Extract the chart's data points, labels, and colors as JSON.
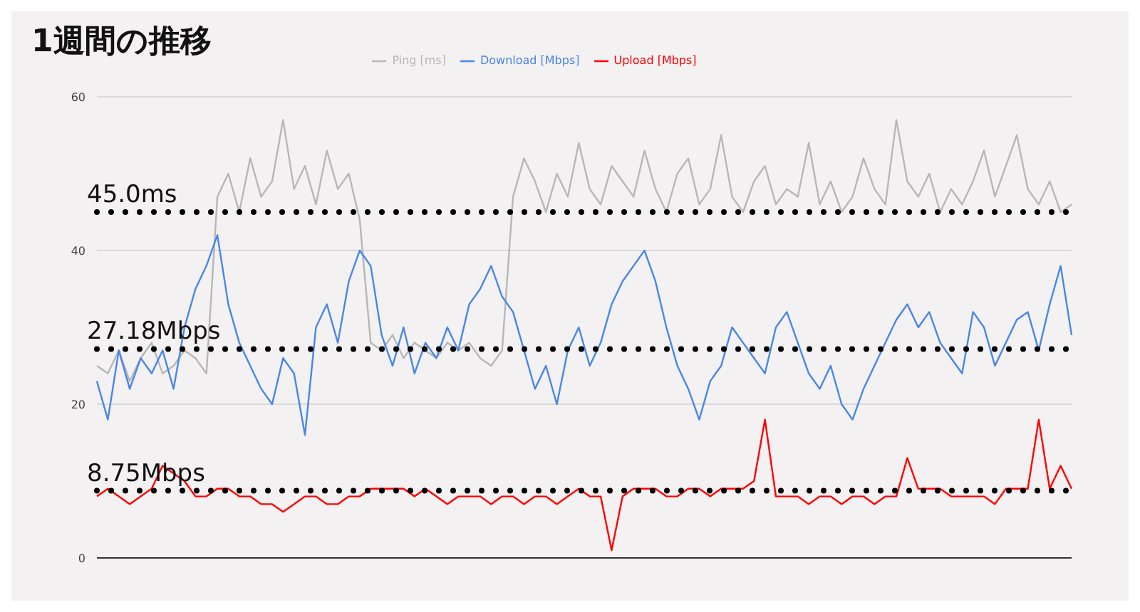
{
  "chart_data": {
    "type": "line",
    "title": "1週間の推移",
    "categories": [
      null,
      null,
      null,
      null,
      null,
      null,
      null,
      null,
      null,
      null,
      null,
      null,
      null,
      null,
      null,
      null,
      null,
      null,
      null,
      null,
      null,
      null,
      null,
      null,
      null,
      null,
      null,
      null,
      null,
      null,
      null,
      null,
      null,
      null,
      null,
      null,
      null,
      null,
      null,
      null,
      null,
      null,
      null,
      null,
      null,
      null,
      null,
      null,
      null,
      null,
      null,
      null,
      null,
      null,
      null,
      null,
      null,
      null,
      null,
      null,
      null,
      null,
      null,
      null,
      null,
      null,
      null,
      null,
      null,
      null,
      null,
      null,
      null,
      null,
      null,
      null,
      null,
      null,
      null,
      null,
      null,
      null,
      null,
      null,
      null,
      null,
      null,
      null,
      null,
      null
    ],
    "series": [
      {
        "name": "Ping [ms]",
        "color": "#b7b7b7",
        "values": [
          25,
          24,
          27,
          23,
          26,
          28,
          24,
          25,
          27,
          26,
          24,
          47,
          50,
          45,
          52,
          47,
          49,
          57,
          48,
          51,
          46,
          53,
          48,
          50,
          44,
          28,
          27,
          29,
          26,
          28,
          27,
          26,
          28,
          27,
          28,
          26,
          25,
          27,
          47,
          52,
          49,
          45,
          50,
          47,
          54,
          48,
          46,
          51,
          49,
          47,
          53,
          48,
          45,
          50,
          52,
          46,
          48,
          55,
          47,
          45,
          49,
          51,
          46,
          48,
          47,
          54,
          46,
          49,
          45,
          47,
          52,
          48,
          46,
          57,
          49,
          47,
          50,
          45,
          48,
          46,
          49,
          53,
          47,
          51,
          55,
          48,
          46,
          49,
          45,
          46
        ]
      },
      {
        "name": "Download [Mbps]",
        "color": "#4a86e8",
        "values": [
          23,
          18,
          27,
          22,
          26,
          24,
          27,
          22,
          30,
          35,
          38,
          42,
          33,
          28,
          25,
          22,
          20,
          26,
          24,
          16,
          30,
          33,
          28,
          36,
          40,
          38,
          29,
          25,
          30,
          24,
          28,
          26,
          30,
          27,
          33,
          35,
          38,
          34,
          32,
          27,
          22,
          25,
          20,
          27,
          30,
          25,
          28,
          33,
          36,
          38,
          40,
          36,
          30,
          25,
          22,
          18,
          23,
          25,
          30,
          28,
          26,
          24,
          30,
          32,
          28,
          24,
          22,
          25,
          20,
          18,
          22,
          25,
          28,
          31,
          33,
          30,
          32,
          28,
          26,
          24,
          32,
          30,
          25,
          28,
          31,
          32,
          27,
          33,
          38,
          29
        ]
      },
      {
        "name": "Upload [Mbps]",
        "color": "#ff0000",
        "values": [
          8,
          9,
          8,
          7,
          8,
          9,
          12,
          11,
          10,
          8,
          8,
          9,
          9,
          8,
          8,
          7,
          7,
          6,
          7,
          8,
          8,
          7,
          7,
          8,
          8,
          9,
          9,
          9,
          9,
          8,
          9,
          8,
          7,
          8,
          8,
          8,
          7,
          8,
          8,
          7,
          8,
          8,
          7,
          8,
          9,
          8,
          8,
          1,
          8,
          9,
          9,
          9,
          8,
          8,
          9,
          9,
          8,
          9,
          9,
          9,
          10,
          18,
          8,
          8,
          8,
          7,
          8,
          8,
          7,
          8,
          8,
          7,
          8,
          8,
          13,
          9,
          9,
          9,
          8,
          8,
          8,
          8,
          7,
          9,
          9,
          9,
          18,
          9,
          12,
          9
        ]
      }
    ],
    "ylim": [
      0,
      60
    ],
    "yticks": [
      0,
      20,
      40,
      60
    ],
    "grid": "y",
    "legend": "top",
    "marker": "none",
    "line_style": "solid",
    "tick_labels": "y",
    "ref_lines": [
      {
        "axis": "y",
        "value": 45,
        "label": "45.0ms",
        "color": "#000000",
        "line_style": "dotted"
      },
      {
        "axis": "y",
        "value": 27.18,
        "label": "27.18Mbps",
        "color": "#000000",
        "line_style": "dotted"
      },
      {
        "axis": "y",
        "value": 8.75,
        "label": "8.75Mbps",
        "color": "#000000",
        "line_style": "dotted"
      }
    ]
  }
}
